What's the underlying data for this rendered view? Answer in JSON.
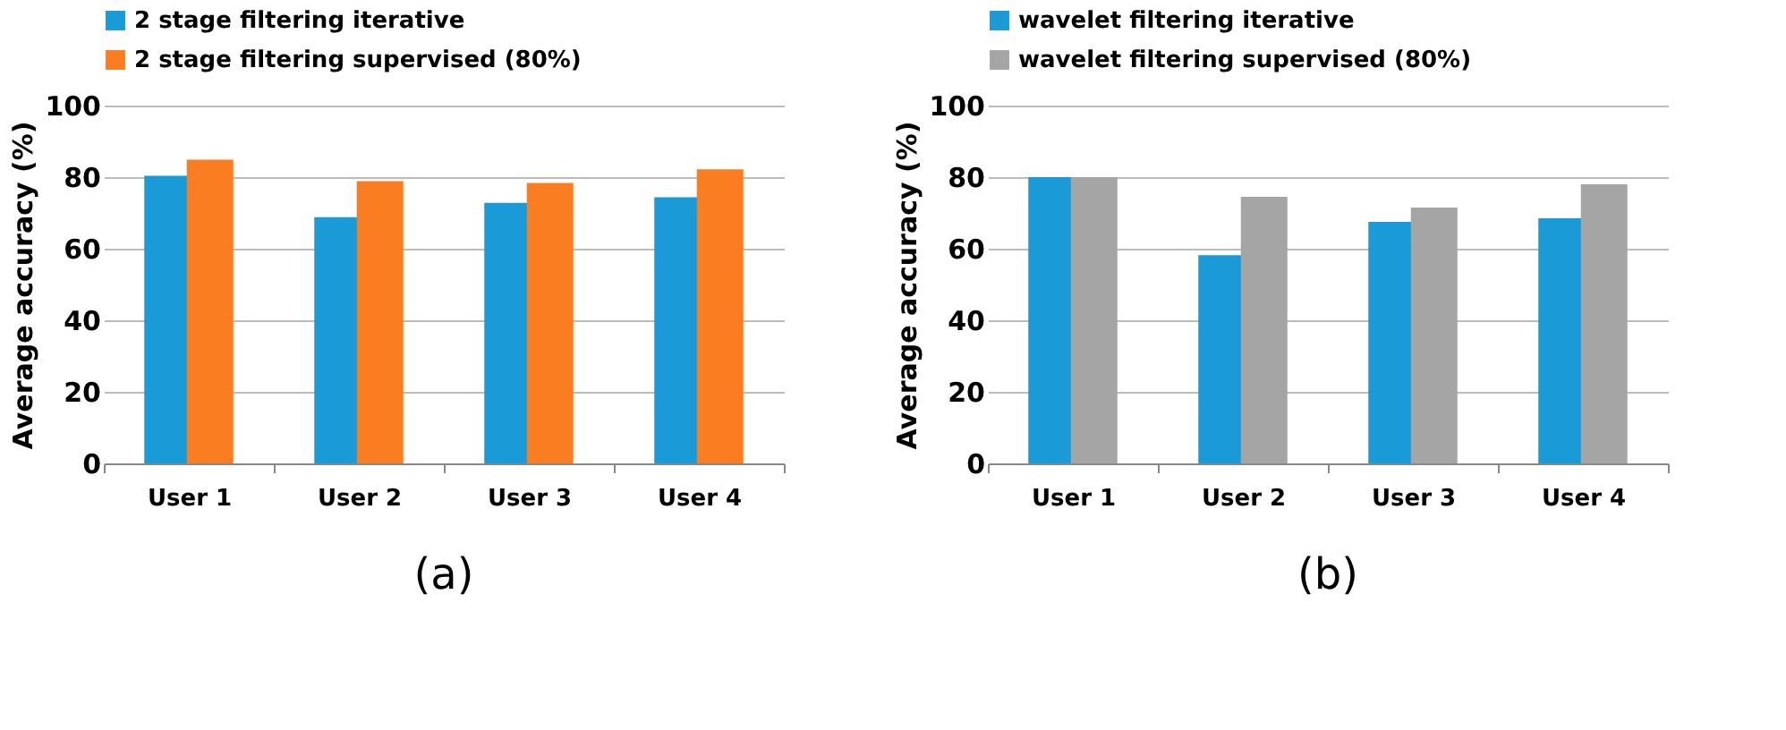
{
  "chart_data": [
    {
      "type": "bar",
      "categories": [
        "User 1",
        "User 2",
        "User 3",
        "User 4"
      ],
      "ylabel": "Average accuracy (%)",
      "ylim": [
        0,
        100
      ],
      "yticks": [
        0,
        20,
        40,
        60,
        80,
        100
      ],
      "grid": "y",
      "legend": "top left",
      "annotations": [
        "(a)"
      ],
      "series": [
        {
          "name": "2 stage filtering iterative",
          "color": "#1a9ad6",
          "values": [
            80.4,
            68.8,
            72.8,
            74.4
          ]
        },
        {
          "name": "2 stage filtering supervised (80%)",
          "color": "#fb7d22",
          "values": [
            84.9,
            78.9,
            78.4,
            82.2
          ]
        }
      ]
    },
    {
      "type": "bar",
      "categories": [
        "User 1",
        "User 2",
        "User 3",
        "User 4"
      ],
      "ylabel": "Average accuracy (%)",
      "ylim": [
        0,
        100
      ],
      "yticks": [
        0,
        20,
        40,
        60,
        80,
        100
      ],
      "grid": "y",
      "legend": "top left",
      "annotations": [
        "(b)"
      ],
      "series": [
        {
          "name": "wavelet filtering iterative",
          "color": "#1a9ad6",
          "values": [
            80,
            58.2,
            67.5,
            68.5
          ]
        },
        {
          "name": "wavelet filtering supervised (80%)",
          "color": "#a5a5a5",
          "values": [
            80,
            74.5,
            71.5,
            78
          ]
        }
      ]
    }
  ]
}
